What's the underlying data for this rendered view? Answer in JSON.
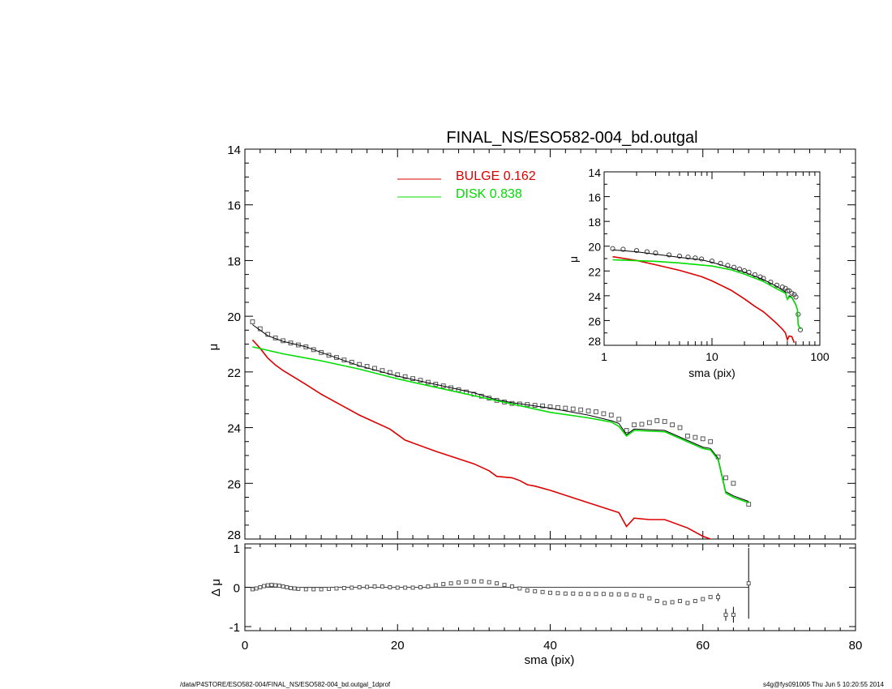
{
  "chart_data": [
    {
      "panel": "main",
      "type": "line",
      "title": "FINAL_NS/ESO582-004_bd.outgal",
      "xlabel": "",
      "ylabel": "μ",
      "xlim": [
        0,
        80
      ],
      "ylim": [
        28,
        14
      ],
      "y_inverted": true,
      "yticks": [
        14,
        16,
        18,
        20,
        22,
        24,
        26,
        28
      ],
      "ytick_labels": [
        "14",
        "16",
        "18",
        "20",
        "22",
        "24",
        "26",
        "28"
      ],
      "legend": {
        "placement": "top-center",
        "entries": [
          {
            "label": "BULGE  0.162",
            "color": "#dd0000"
          },
          {
            "label": "DISK  0.838",
            "color": "#00dd00"
          }
        ]
      },
      "series": [
        {
          "kind": "data",
          "style": "open squares",
          "x": [
            1,
            2,
            3,
            4,
            5,
            6,
            7,
            8,
            9,
            10,
            11,
            12,
            13,
            14,
            15,
            16,
            17,
            18,
            19,
            20,
            21,
            22,
            23,
            24,
            25,
            26,
            27,
            28,
            29,
            30,
            31,
            32,
            33,
            34,
            35,
            36,
            37,
            38,
            39,
            40,
            41,
            42,
            43,
            44,
            45,
            46,
            47,
            48,
            49,
            50,
            51,
            52,
            53,
            54,
            55,
            56,
            57,
            58,
            59,
            60,
            61,
            62,
            63,
            64,
            66
          ],
          "y": [
            20.2,
            20.45,
            20.65,
            20.78,
            20.88,
            20.96,
            21.03,
            21.1,
            21.2,
            21.3,
            21.4,
            21.48,
            21.57,
            21.65,
            21.73,
            21.8,
            21.87,
            21.95,
            22.02,
            22.1,
            22.17,
            22.24,
            22.3,
            22.37,
            22.44,
            22.5,
            22.57,
            22.64,
            22.72,
            22.8,
            22.87,
            22.94,
            23.02,
            23.08,
            23.13,
            23.15,
            23.17,
            23.2,
            23.22,
            23.25,
            23.28,
            23.3,
            23.33,
            23.36,
            23.4,
            23.43,
            23.5,
            23.55,
            23.7,
            24.1,
            23.9,
            23.88,
            23.82,
            23.75,
            23.78,
            23.9,
            24.0,
            24.3,
            24.35,
            24.4,
            24.5,
            25.05,
            25.8,
            26.0,
            26.75
          ]
        },
        {
          "kind": "model",
          "color": "#000000",
          "x": [
            1,
            2,
            3,
            5,
            8,
            10,
            15,
            20,
            25,
            30,
            33,
            35,
            40,
            45,
            48,
            49,
            50,
            51,
            55,
            60,
            61,
            62,
            63,
            64,
            66
          ],
          "y": [
            20.3,
            20.5,
            20.7,
            20.9,
            21.1,
            21.3,
            21.78,
            22.15,
            22.45,
            22.75,
            23.0,
            23.1,
            23.3,
            23.55,
            23.75,
            23.85,
            24.25,
            24.05,
            24.1,
            24.7,
            24.75,
            25.1,
            26.3,
            26.45,
            26.65
          ]
        },
        {
          "name": "BULGE",
          "kind": "component",
          "color": "#dd0000",
          "x": [
            1,
            2,
            3,
            4,
            5,
            8,
            10,
            15,
            19,
            20,
            21,
            25,
            30,
            32,
            33,
            35,
            36,
            37,
            38,
            40,
            45,
            49,
            50,
            51,
            53,
            55,
            58,
            60,
            62
          ],
          "y": [
            20.85,
            21.15,
            21.5,
            21.75,
            21.95,
            22.45,
            22.8,
            23.55,
            24.05,
            24.25,
            24.45,
            24.85,
            25.3,
            25.55,
            25.75,
            25.8,
            25.9,
            26.05,
            26.1,
            26.25,
            26.7,
            27.05,
            27.55,
            27.25,
            27.3,
            27.3,
            27.6,
            27.9,
            28.1
          ]
        },
        {
          "name": "DISK",
          "kind": "component",
          "color": "#00dd00",
          "x": [
            1,
            5,
            10,
            15,
            20,
            25,
            30,
            35,
            40,
            45,
            48,
            49,
            50,
            51,
            55,
            60,
            61,
            62,
            63,
            64,
            66
          ],
          "y": [
            21.1,
            21.35,
            21.6,
            21.9,
            22.25,
            22.55,
            22.85,
            23.15,
            23.45,
            23.65,
            23.8,
            23.95,
            24.3,
            24.1,
            24.15,
            24.75,
            24.8,
            25.15,
            26.35,
            26.5,
            26.7
          ]
        }
      ]
    },
    {
      "panel": "inset",
      "type": "line",
      "xlabel": "sma (pix)",
      "ylabel": "μ",
      "xscale": "log",
      "xlim": [
        1,
        100
      ],
      "ylim": [
        28,
        14
      ],
      "y_inverted": true,
      "xticks": [
        1,
        10,
        100
      ],
      "xtick_labels": [
        "1",
        "10",
        "100"
      ],
      "yticks": [
        14,
        16,
        18,
        20,
        22,
        24,
        26,
        28
      ],
      "ytick_labels": [
        "14",
        "16",
        "18",
        "20",
        "22",
        "24",
        "26",
        "28"
      ],
      "series": [
        {
          "kind": "data",
          "style": "open circles",
          "x": [
            1.2,
            1.5,
            2,
            2.5,
            3,
            4,
            5,
            6,
            7,
            8,
            10,
            12,
            14,
            16,
            18,
            20,
            22,
            25,
            28,
            30,
            35,
            40,
            45,
            48,
            50,
            52,
            55,
            58,
            60,
            63,
            66
          ],
          "y": [
            20.2,
            20.25,
            20.35,
            20.45,
            20.55,
            20.7,
            20.8,
            20.88,
            20.95,
            21.03,
            21.2,
            21.38,
            21.55,
            21.7,
            21.85,
            21.98,
            22.1,
            22.3,
            22.48,
            22.6,
            22.9,
            23.15,
            23.3,
            23.4,
            23.6,
            23.6,
            23.8,
            23.9,
            24.1,
            25.5,
            26.75
          ]
        },
        {
          "kind": "model",
          "color": "#000000",
          "x": [
            1.2,
            2,
            3,
            5,
            8,
            10,
            15,
            20,
            30,
            40,
            48,
            50,
            52,
            55,
            60,
            62,
            63,
            66
          ],
          "y": [
            20.3,
            20.45,
            20.65,
            20.9,
            21.1,
            21.3,
            21.75,
            22.1,
            22.7,
            23.25,
            23.7,
            24.3,
            24.0,
            24.1,
            24.7,
            25.1,
            26.3,
            26.65
          ]
        },
        {
          "name": "BULGE",
          "kind": "component",
          "color": "#dd0000",
          "x": [
            1.2,
            2,
            3,
            5,
            8,
            10,
            15,
            20,
            25,
            30,
            35,
            40,
            45,
            48,
            50,
            52,
            55,
            58
          ],
          "y": [
            20.85,
            21.15,
            21.5,
            21.95,
            22.45,
            22.8,
            23.55,
            24.25,
            24.85,
            25.3,
            25.8,
            26.25,
            26.7,
            27.0,
            27.55,
            27.25,
            27.3,
            27.8
          ]
        },
        {
          "name": "DISK",
          "kind": "component",
          "color": "#00dd00",
          "x": [
            1.2,
            3,
            5,
            10,
            15,
            20,
            30,
            40,
            48,
            50,
            52,
            55,
            60,
            62,
            63,
            66
          ],
          "y": [
            21.1,
            21.22,
            21.35,
            21.6,
            21.9,
            22.25,
            22.85,
            23.45,
            23.8,
            24.3,
            24.1,
            24.15,
            24.75,
            25.15,
            26.35,
            26.7
          ]
        }
      ]
    },
    {
      "panel": "residual",
      "type": "scatter",
      "xlabel": "sma (pix)",
      "ylabel": "Δ μ",
      "xlim": [
        0,
        80
      ],
      "ylim": [
        -1.1,
        1.1
      ],
      "xticks": [
        0,
        20,
        40,
        60,
        80
      ],
      "xtick_labels": [
        "0",
        "20",
        "40",
        "60",
        "80"
      ],
      "yticks": [
        -1,
        0,
        1
      ],
      "ytick_labels": [
        "-1",
        "0",
        "1"
      ],
      "reference_line": 0,
      "series": [
        {
          "kind": "residuals",
          "style": "open squares with error bars",
          "x": [
            1,
            1.5,
            2,
            2.5,
            3,
            3.5,
            4,
            4.5,
            5,
            5.5,
            6,
            6.5,
            7,
            8,
            9,
            10,
            11,
            12,
            13,
            14,
            15,
            16,
            17,
            18,
            19,
            20,
            21,
            22,
            23,
            24,
            25,
            26,
            27,
            28,
            29,
            30,
            31,
            32,
            33,
            34,
            35,
            36,
            37,
            38,
            39,
            40,
            41,
            42,
            43,
            44,
            45,
            46,
            47,
            48,
            49,
            50,
            51,
            52,
            53,
            54,
            55,
            56,
            57,
            58,
            59,
            60,
            61,
            62,
            63,
            64,
            66
          ],
          "y": [
            -0.05,
            -0.03,
            0,
            0.03,
            0.05,
            0.06,
            0.05,
            0.04,
            0.02,
            0,
            -0.02,
            -0.03,
            -0.04,
            -0.05,
            -0.05,
            -0.05,
            -0.04,
            -0.03,
            -0.02,
            -0.01,
            0,
            0.01,
            0.02,
            0.02,
            0,
            -0.01,
            -0.01,
            -0.01,
            0,
            0.02,
            0.05,
            0.08,
            0.1,
            0.12,
            0.14,
            0.15,
            0.15,
            0.13,
            0.1,
            0.06,
            0.02,
            -0.03,
            -0.08,
            -0.1,
            -0.12,
            -0.14,
            -0.15,
            -0.16,
            -0.16,
            -0.17,
            -0.17,
            -0.17,
            -0.17,
            -0.18,
            -0.18,
            -0.18,
            -0.2,
            -0.22,
            -0.28,
            -0.35,
            -0.4,
            -0.38,
            -0.35,
            -0.4,
            -0.35,
            -0.3,
            -0.25,
            -0.25,
            -0.7,
            -0.7,
            0.1
          ],
          "err": [
            0,
            0,
            0,
            0,
            0,
            0,
            0,
            0,
            0,
            0,
            0,
            0,
            0,
            0,
            0,
            0,
            0,
            0,
            0,
            0,
            0,
            0,
            0,
            0,
            0,
            0,
            0,
            0,
            0,
            0,
            0,
            0,
            0,
            0,
            0,
            0,
            0,
            0,
            0,
            0,
            0,
            0,
            0,
            0,
            0,
            0,
            0,
            0,
            0,
            0,
            0,
            0,
            0,
            0,
            0,
            0,
            0,
            0,
            0,
            0,
            0,
            0,
            0,
            0,
            0,
            0,
            0,
            0.1,
            0.15,
            0.2,
            0.9
          ]
        }
      ]
    }
  ],
  "footer": {
    "left": "/data/P4STORE/ESO582-004/FINAL_NS/ESO582-004_bd.outgal_1dprof",
    "right": "s4g@fys091005  Thu Jun  5 10:20:55 2014"
  }
}
